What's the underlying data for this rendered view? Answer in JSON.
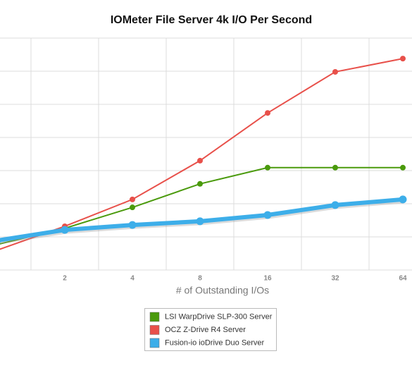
{
  "chart_data": {
    "type": "line",
    "title": "IOMeter File Server 4k I/O Per Second",
    "x_label": "# of Outstanding I/Os",
    "categories": [
      null,
      "2",
      "4",
      "8",
      "16",
      "32",
      "64"
    ],
    "ylim": [
      0,
      7
    ],
    "grid": true,
    "series": [
      {
        "name": "LSI WarpDrive SLP-300 Server",
        "color": "#4a9a0c",
        "values": [
          0.77,
          1.26,
          1.89,
          2.6,
          3.09,
          3.09,
          3.09
        ]
      },
      {
        "name": "OCZ Z-Drive R4 Server",
        "color": "#e8504a",
        "values": [
          0.6,
          1.32,
          2.13,
          3.3,
          4.74,
          5.98,
          6.38
        ]
      },
      {
        "name": "Fusion-io ioDrive Duo Server",
        "color": "#3daee9",
        "values": [
          0.89,
          1.21,
          1.36,
          1.47,
          1.66,
          1.96,
          2.13
        ]
      }
    ]
  }
}
